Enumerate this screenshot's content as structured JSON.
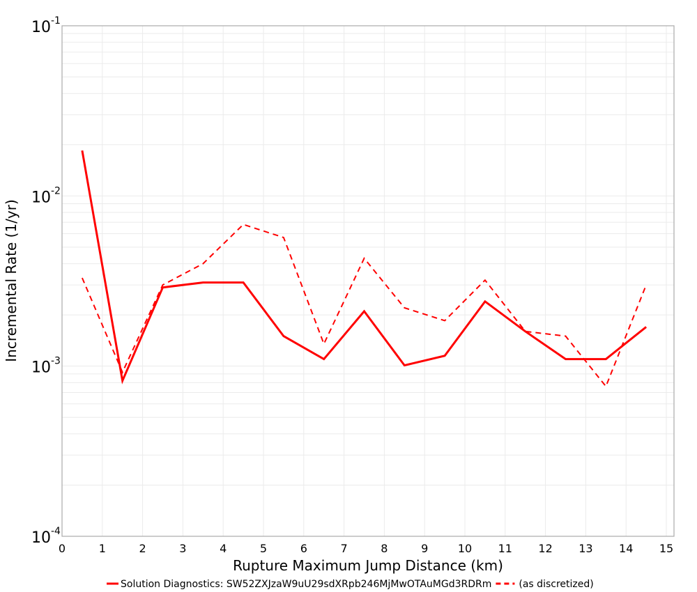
{
  "chart_data": {
    "type": "line",
    "title": "",
    "xlabel": "Rupture Maximum Jump Distance (km)",
    "ylabel": "Incremental Rate (1/yr)",
    "xlim": [
      0,
      15.2
    ],
    "ylim": [
      0.0001,
      0.1
    ],
    "yscale": "log",
    "grid": true,
    "legend_position": "bottom",
    "x_ticks": [
      0,
      1,
      2,
      3,
      4,
      5,
      6,
      7,
      8,
      9,
      10,
      11,
      12,
      13,
      14,
      15
    ],
    "y_ticks": [
      {
        "base": "10",
        "exp": "-1",
        "value": 0.1
      },
      {
        "base": "10",
        "exp": "-2",
        "value": 0.01
      },
      {
        "base": "10",
        "exp": "-3",
        "value": 0.001
      },
      {
        "base": "10",
        "exp": "-4",
        "value": 0.0001
      }
    ],
    "x": [
      0.5,
      1.5,
      2.5,
      3.5,
      4.5,
      5.5,
      6.5,
      7.5,
      8.5,
      9.5,
      10.5,
      11.5,
      12.5,
      13.5,
      14.5
    ],
    "series": [
      {
        "name": "Solution Diagnostics: SW52ZXJzaW9uU29sdXRpb246MjMwOTAuMGd3RDRm",
        "style": "solid",
        "color": "#ff0000",
        "values": [
          0.0185,
          0.00082,
          0.0029,
          0.0031,
          0.0031,
          0.0015,
          0.0011,
          0.0021,
          0.00101,
          0.00115,
          0.0024,
          0.0016,
          0.0011,
          0.0011,
          0.0017
        ]
      },
      {
        "name": "(as discretized)",
        "style": "dashed",
        "color": "#ff0000",
        "values": [
          0.0033,
          0.00092,
          0.003,
          0.004,
          0.0068,
          0.0057,
          0.00135,
          0.0043,
          0.0022,
          0.00185,
          0.0032,
          0.0016,
          0.0015,
          0.00076,
          0.003
        ]
      }
    ]
  },
  "legend": {
    "items": [
      {
        "label": "Solution Diagnostics: SW52ZXJzaW9uU29sdXRpb246MjMwOTAuMGd3RDRm",
        "style": "solid"
      },
      {
        "label": "(as discretized)",
        "style": "dashed"
      }
    ]
  }
}
